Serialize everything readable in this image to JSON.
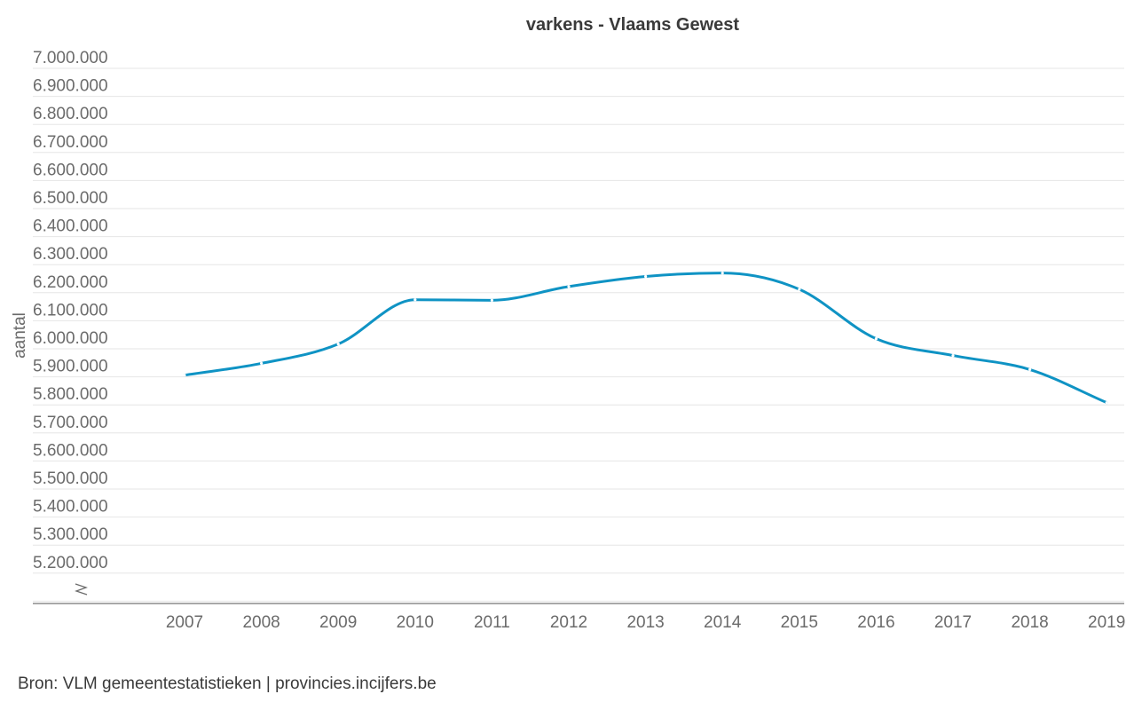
{
  "chart_data": {
    "type": "line",
    "title": "varkens - Vlaams Gewest",
    "ylabel": "aantal",
    "xlabel": "",
    "x": [
      "2007",
      "2008",
      "2009",
      "2010",
      "2011",
      "2012",
      "2013",
      "2014",
      "2015",
      "2016",
      "2017",
      "2018",
      "2019"
    ],
    "series": [
      {
        "values": [
          5906000,
          5948000,
          6017000,
          6175000,
          6173000,
          6222000,
          6258000,
          6270000,
          6212000,
          6036000,
          5976000,
          5926000,
          5808000
        ]
      }
    ],
    "ylim": [
      5100000,
      7000000
    ],
    "yticks": [
      5200000,
      5300000,
      5400000,
      5500000,
      5600000,
      5700000,
      5800000,
      5900000,
      6000000,
      6100000,
      6200000,
      6300000,
      6400000,
      6500000,
      6600000,
      6700000,
      6800000,
      6900000,
      7000000
    ],
    "ytick_labels": [
      "5.200.000",
      "5.300.000",
      "5.400.000",
      "5.500.000",
      "5.600.000",
      "5.700.000",
      "5.800.000",
      "5.900.000",
      "6.000.000",
      "6.100.000",
      "6.200.000",
      "6.300.000",
      "6.400.000",
      "6.500.000",
      "6.600.000",
      "6.700.000",
      "6.800.000",
      "6.900.000",
      "7.000.000"
    ],
    "axis_break": true,
    "grid": true,
    "line_color": "#0f93c4",
    "source": "Bron: VLM gemeentestatistieken | provincies.incijfers.be"
  }
}
